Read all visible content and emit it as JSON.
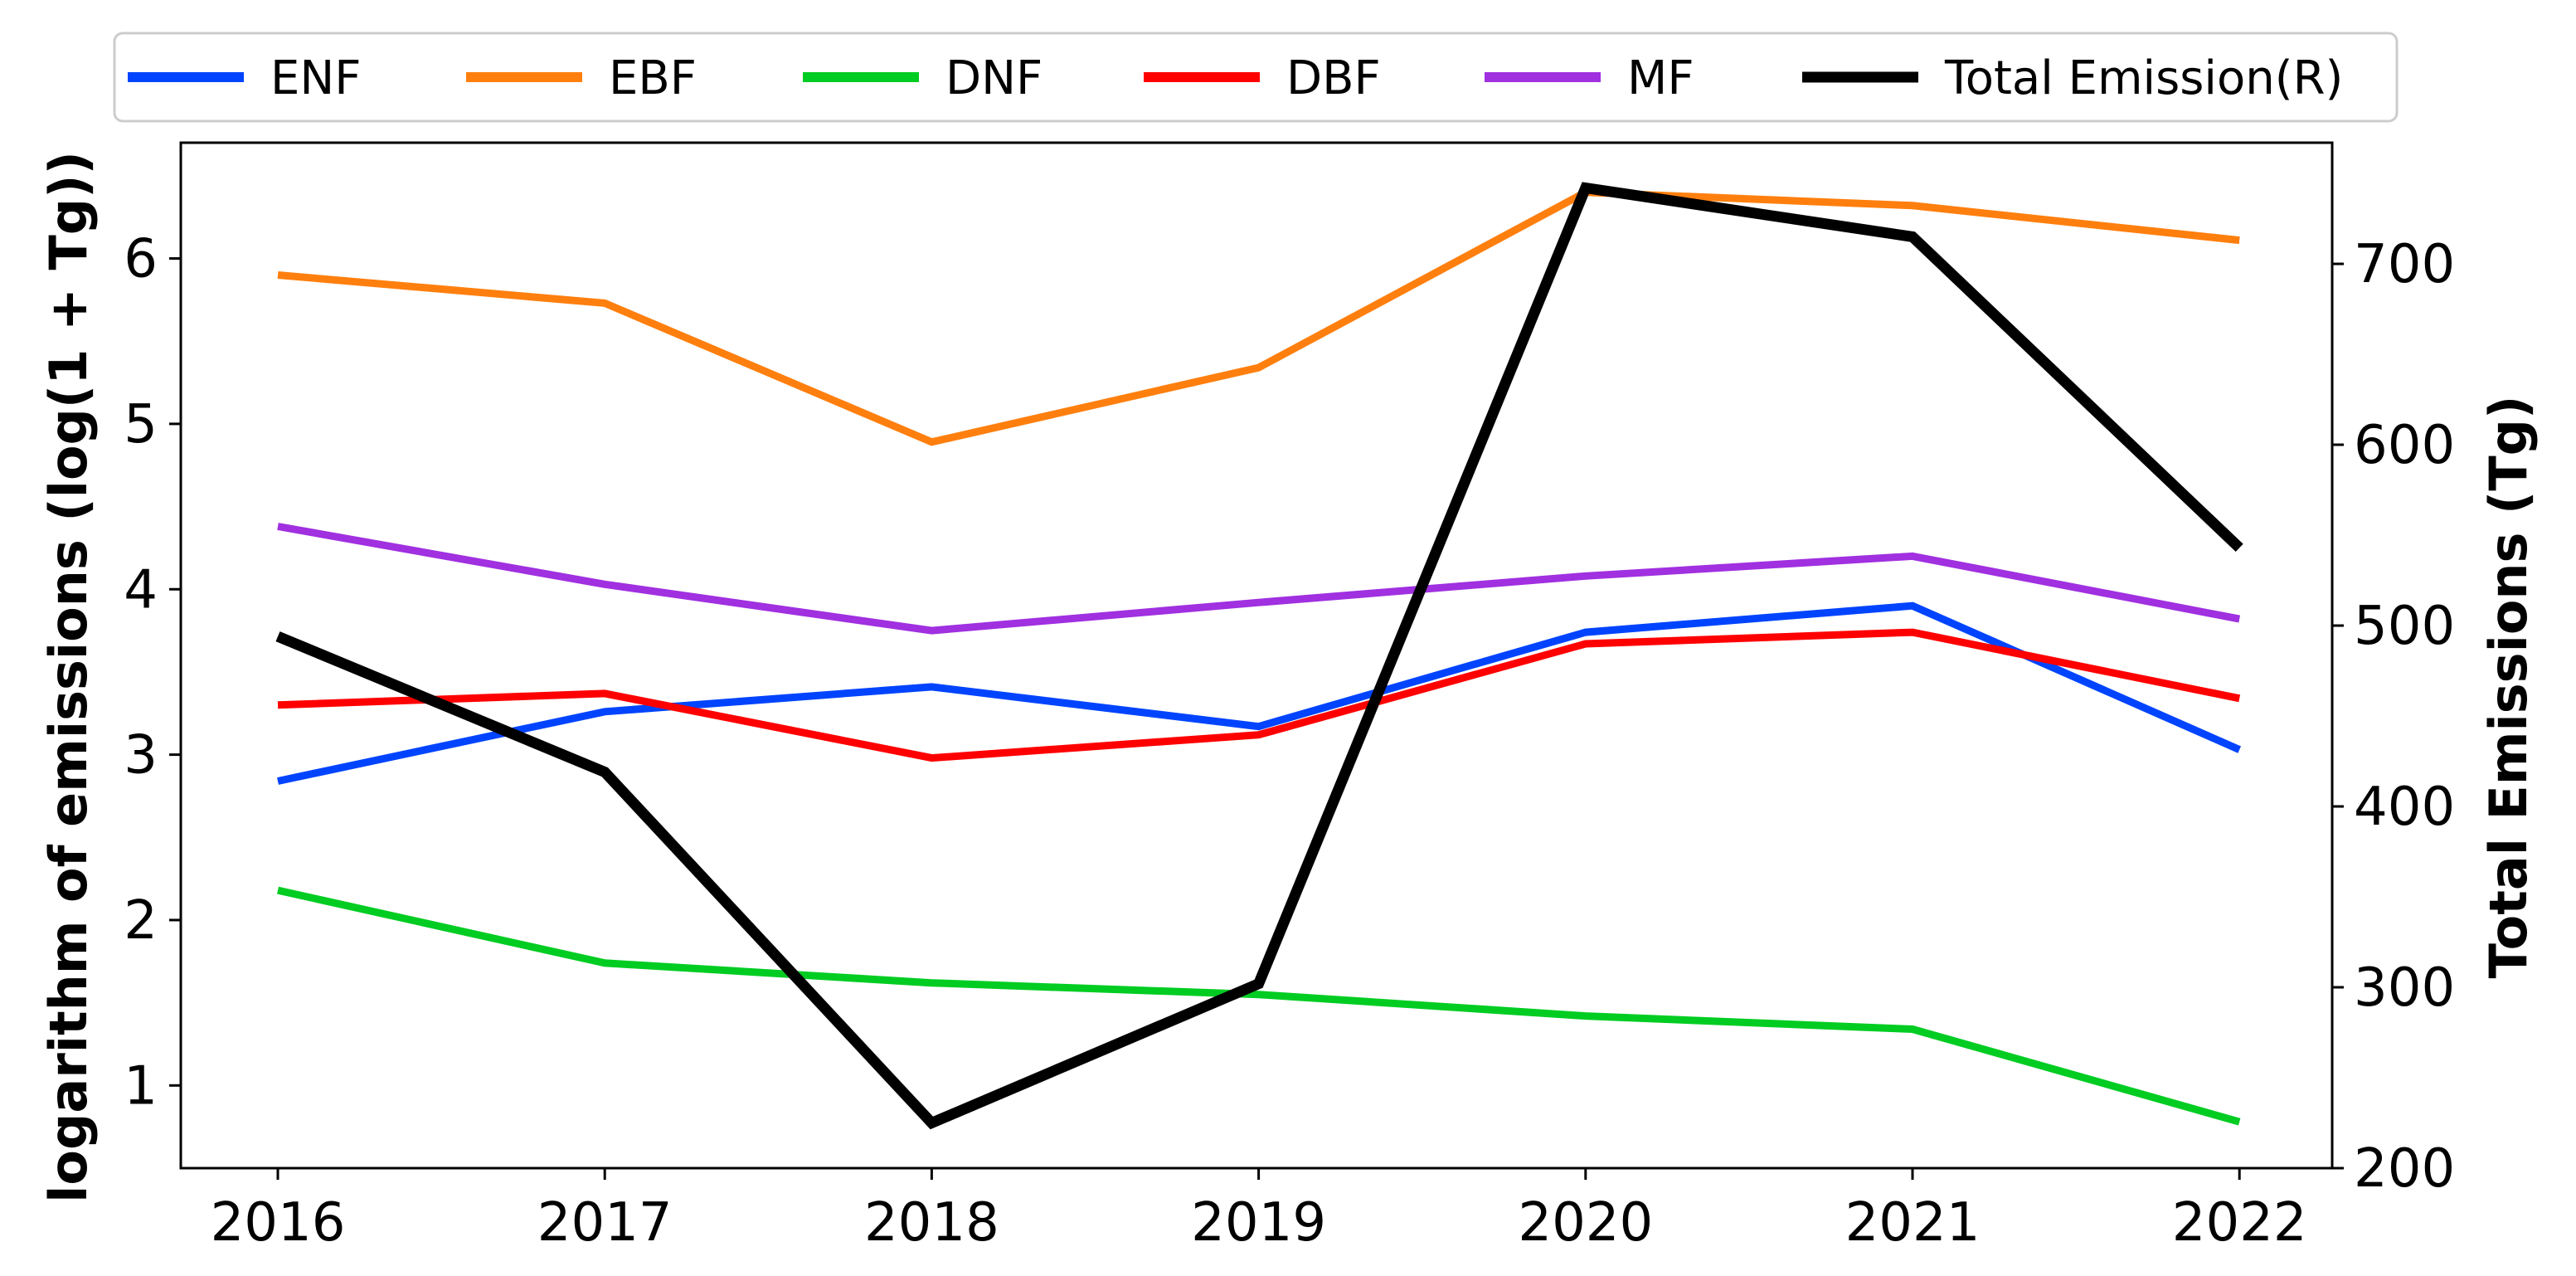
{
  "chart_data": {
    "type": "line",
    "x": [
      2016,
      2017,
      2018,
      2019,
      2020,
      2021,
      2022
    ],
    "x_tick_labels": [
      "2016",
      "2017",
      "2018",
      "2019",
      "2020",
      "2021",
      "2022"
    ],
    "ylabel_left": "logarithm of emissions (log(1 + Tg))",
    "ylabel_right": "Total Emissions (Tg)",
    "ylim_left": [
      0.5,
      6.7
    ],
    "ylim_right": [
      200,
      767
    ],
    "yticks_left": [
      1,
      2,
      3,
      4,
      5,
      6
    ],
    "yticks_right": [
      200,
      300,
      400,
      500,
      600,
      700
    ],
    "legend_position": "top",
    "grid": false,
    "series": [
      {
        "name": "ENF",
        "axis": "left",
        "color": "#0044ff",
        "values": [
          2.84,
          3.26,
          3.41,
          3.17,
          3.74,
          3.9,
          3.03
        ]
      },
      {
        "name": "EBF",
        "axis": "left",
        "color": "#ff7f0e",
        "values": [
          5.9,
          5.73,
          4.89,
          5.34,
          6.4,
          6.32,
          6.11
        ]
      },
      {
        "name": "DNF",
        "axis": "left",
        "color": "#00cc22",
        "values": [
          2.18,
          1.74,
          1.62,
          1.55,
          1.42,
          1.34,
          0.78
        ]
      },
      {
        "name": "DBF",
        "axis": "left",
        "color": "#ff0000",
        "values": [
          3.3,
          3.37,
          2.98,
          3.12,
          3.67,
          3.74,
          3.34
        ]
      },
      {
        "name": "MF",
        "axis": "left",
        "color": "#a030e0",
        "values": [
          4.38,
          4.03,
          3.75,
          3.92,
          4.08,
          4.2,
          3.82
        ]
      },
      {
        "name": "Total Emission(R)",
        "axis": "right",
        "color": "#000000",
        "values": [
          494,
          419,
          225,
          302,
          742,
          715,
          543
        ]
      }
    ]
  }
}
